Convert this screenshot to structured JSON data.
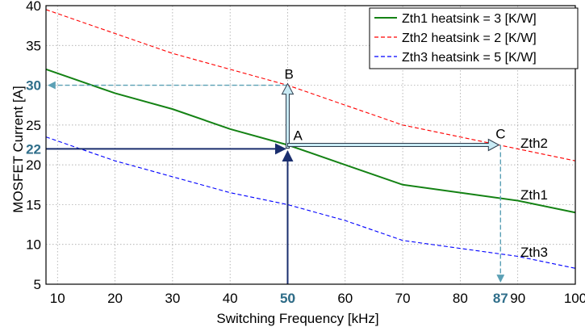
{
  "chart_data": {
    "type": "line",
    "xlabel": "Switching Frequency [kHz]",
    "ylabel": "MOSFET Current [A]",
    "xlim": [
      8,
      100
    ],
    "ylim": [
      5,
      40
    ],
    "x_ticks": [
      "10",
      "20",
      "30",
      "40",
      "50",
      "60",
      "70",
      "80",
      "90",
      "100"
    ],
    "y_ticks": [
      "5",
      "10",
      "15",
      "20",
      "25",
      "35",
      "40"
    ],
    "grid": true,
    "legend_position": "top-right",
    "series": [
      {
        "name": "Zth1 heatsink = 3 [K/W]",
        "label": "Zth1",
        "color": "#148214",
        "style": "solid",
        "x": [
          8,
          20,
          30,
          40,
          50,
          60,
          70,
          80,
          90,
          100
        ],
        "y": [
          32,
          29,
          27,
          24.5,
          22.5,
          20,
          17.5,
          16.5,
          15.5,
          14
        ]
      },
      {
        "name": "Zth2 heatsink = 2 [K/W]",
        "label": "Zth2",
        "color": "#ff0000",
        "style": "dashed",
        "x": [
          8,
          20,
          30,
          40,
          50,
          60,
          70,
          80,
          90,
          100
        ],
        "y": [
          39.5,
          36.5,
          34,
          32,
          30,
          27.5,
          25,
          23.5,
          22,
          20.5
        ]
      },
      {
        "name": "Zth3 heatsink = 5 [K/W]",
        "label": "Zth3",
        "color": "#0000ff",
        "style": "dashed",
        "x": [
          8,
          20,
          30,
          40,
          50,
          60,
          70,
          80,
          90,
          100
        ],
        "y": [
          23.5,
          20.5,
          18.5,
          16.5,
          15,
          13,
          10.5,
          9.5,
          8.5,
          7
        ]
      }
    ],
    "highlight_ticks": {
      "x": [
        "50",
        "87"
      ],
      "y": [
        "22",
        "30"
      ]
    },
    "points": [
      {
        "label": "A",
        "x": 50,
        "y": 22.5
      },
      {
        "label": "B",
        "x": 50,
        "y": 30
      },
      {
        "label": "C",
        "x": 87,
        "y": 22.5
      }
    ]
  }
}
